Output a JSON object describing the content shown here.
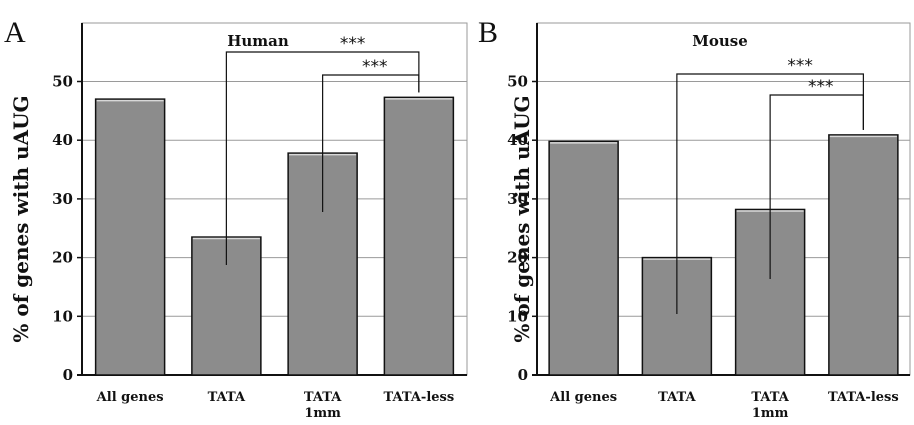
{
  "chart_data": [
    {
      "type": "bar",
      "panel": "A",
      "title": "Human",
      "ylabel": "% of genes with uAUG",
      "ylim": [
        0,
        50
      ],
      "yticks": [
        0,
        10,
        20,
        30,
        40,
        50
      ],
      "categories": [
        [
          "All genes"
        ],
        [
          "TATA"
        ],
        [
          "TATA",
          "1mm"
        ],
        [
          "TATA-less"
        ]
      ],
      "values": [
        47,
        23.5,
        37.8,
        47.3
      ],
      "grid": true,
      "bar_color": "#8c8c8c",
      "significance": [
        {
          "from": 1,
          "to": 3,
          "label": "***"
        },
        {
          "from": 2,
          "to": 3,
          "label": "***"
        }
      ]
    },
    {
      "type": "bar",
      "panel": "B",
      "title": "Mouse",
      "ylabel": "% of genes with uAUG",
      "ylim": [
        0,
        50
      ],
      "yticks": [
        0,
        10,
        20,
        30,
        40,
        50
      ],
      "categories": [
        [
          "All genes"
        ],
        [
          "TATA"
        ],
        [
          "TATA",
          "1mm"
        ],
        [
          "TATA-less"
        ]
      ],
      "values": [
        39.8,
        20,
        28.2,
        40.9
      ],
      "grid": true,
      "bar_color": "#8c8c8c",
      "significance": [
        {
          "from": 1,
          "to": 3,
          "label": "***"
        },
        {
          "from": 2,
          "to": 3,
          "label": "***"
        }
      ]
    }
  ]
}
